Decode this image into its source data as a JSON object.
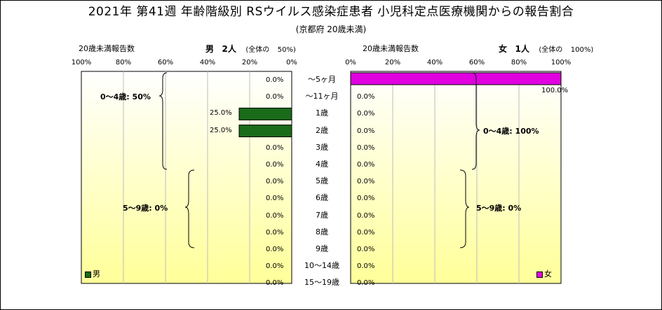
{
  "title": "2021年 第41週 年齢階級別 RSウイルス感染症患者 小児科定点医療機関からの報告割合",
  "subtitle": "(京都府 20歳未満)",
  "left_header": {
    "note": "20歳未満報告数",
    "gender": "男",
    "count": "2人",
    "share": "(全体の",
    "share_pct": "50%)"
  },
  "right_header": {
    "note": "20歳未満報告数",
    "gender": "女",
    "count": "1人",
    "share": "(全体の",
    "share_pct": "100%)"
  },
  "colors": {
    "male": "#1a6b1a",
    "female": "#e000e0",
    "panel_top": "#ffffff",
    "panel_bottom": "#ffff99"
  },
  "legend": {
    "male": "男",
    "female": "女"
  },
  "braces": {
    "male_0_4": "0～4歳: 50%",
    "male_5_9": "5～9歳: 0%",
    "female_0_4": "0～4歳: 100%",
    "female_5_9": "5～9歳: 0%"
  },
  "chart_data": {
    "type": "bar",
    "title": "2021年 第41週 年齢階級別 RSウイルス感染症患者 小児科定点医療機関からの報告割合",
    "subtitle": "(京都府 20歳未満)",
    "categories": [
      "～5ヶ月",
      "～11ヶ月",
      "1歳",
      "2歳",
      "3歳",
      "4歳",
      "5歳",
      "6歳",
      "7歳",
      "8歳",
      "9歳",
      "10～14歳",
      "15～19歳"
    ],
    "series": [
      {
        "name": "男",
        "values": [
          0,
          0,
          25,
          25,
          0,
          0,
          0,
          0,
          0,
          0,
          0,
          0,
          0
        ],
        "labels": [
          "0.0%",
          "0.0%",
          "25.0%",
          "25.0%",
          "0.0%",
          "0.0%",
          "0.0%",
          "0.0%",
          "0.0%",
          "0.0%",
          "0.0%",
          "0.0%",
          "0.0%"
        ]
      },
      {
        "name": "女",
        "values": [
          100,
          0,
          0,
          0,
          0,
          0,
          0,
          0,
          0,
          0,
          0,
          0,
          0
        ],
        "labels": [
          "100.0%",
          "0.0%",
          "0.0%",
          "0.0%",
          "0.0%",
          "0.0%",
          "0.0%",
          "0.0%",
          "0.0%",
          "0.0%",
          "0.0%",
          "0.0%",
          "0.0%"
        ]
      }
    ],
    "left_ticks": [
      "100%",
      "80%",
      "60%",
      "40%",
      "20%",
      "0%"
    ],
    "right_ticks": [
      "0%",
      "20%",
      "40%",
      "60%",
      "80%",
      "100%"
    ],
    "xlim": [
      0,
      100
    ],
    "grid": true
  }
}
